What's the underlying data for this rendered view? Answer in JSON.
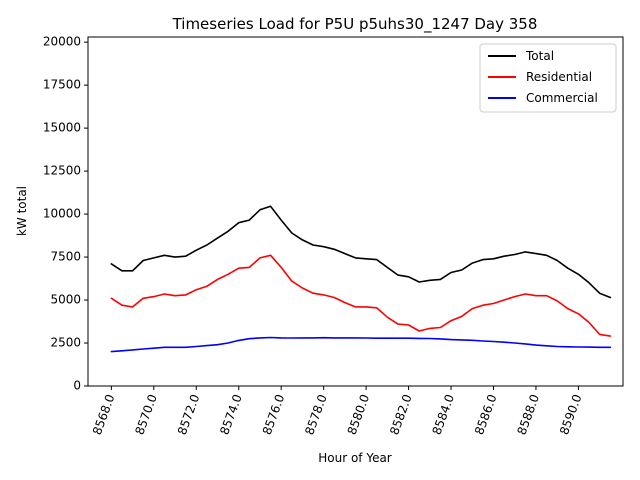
{
  "chart_data": {
    "type": "line",
    "title": "Timeseries Load for P5U p5uhs30_1247  Day 358",
    "xlabel": "Hour of Year",
    "ylabel": "kW total",
    "xlim": [
      8566.9,
      8592.1
    ],
    "ylim": [
      0,
      20300
    ],
    "x_ticks": [
      8568,
      8570,
      8572,
      8574,
      8576,
      8578,
      8580,
      8582,
      8584,
      8586,
      8588,
      8590
    ],
    "x_tick_labels": [
      "8568.0",
      "8570.0",
      "8572.0",
      "8574.0",
      "8576.0",
      "8578.0",
      "8580.0",
      "8582.0",
      "8584.0",
      "8586.0",
      "8588.0",
      "8590.0"
    ],
    "y_ticks": [
      0,
      2500,
      5000,
      7500,
      10000,
      12500,
      15000,
      17500,
      20000
    ],
    "y_tick_labels": [
      "0",
      "2500",
      "5000",
      "7500",
      "10000",
      "12500",
      "15000",
      "17500",
      "20000"
    ],
    "legend_position": "top-right",
    "x": [
      8568.0,
      8568.5,
      8569.0,
      8569.5,
      8570.0,
      8570.5,
      8571.0,
      8571.5,
      8572.0,
      8572.5,
      8573.0,
      8573.5,
      8574.0,
      8574.5,
      8575.0,
      8575.5,
      8576.0,
      8576.5,
      8577.0,
      8577.5,
      8578.0,
      8578.5,
      8579.0,
      8579.5,
      8580.0,
      8580.5,
      8581.0,
      8581.5,
      8582.0,
      8582.5,
      8583.0,
      8583.5,
      8584.0,
      8584.5,
      8585.0,
      8585.5,
      8586.0,
      8586.5,
      8587.0,
      8587.5,
      8588.0,
      8588.5,
      8589.0,
      8589.5,
      8590.0,
      8590.5,
      8591.0,
      8591.5
    ],
    "series": [
      {
        "name": "Total",
        "color": "#000000",
        "values": [
          7100,
          6700,
          6700,
          7300,
          7450,
          7600,
          7500,
          7550,
          7900,
          8200,
          8600,
          9000,
          9500,
          9650,
          10250,
          10450,
          9650,
          8900,
          8500,
          8200,
          8100,
          7950,
          7700,
          7450,
          7400,
          7350,
          6900,
          6450,
          6350,
          6050,
          6150,
          6200,
          6600,
          6750,
          7150,
          7350,
          7400,
          7550,
          7650,
          7800,
          7700,
          7600,
          7300,
          6850,
          6500,
          6000,
          5400,
          5150
        ]
      },
      {
        "name": "Residential",
        "color": "#ff0000",
        "values": [
          5100,
          4700,
          4600,
          5100,
          5200,
          5350,
          5250,
          5300,
          5600,
          5800,
          6200,
          6500,
          6850,
          6900,
          7450,
          7600,
          6900,
          6100,
          5700,
          5400,
          5300,
          5150,
          4850,
          4600,
          4600,
          4550,
          4000,
          3600,
          3550,
          3200,
          3350,
          3400,
          3800,
          4050,
          4500,
          4700,
          4800,
          5000,
          5200,
          5350,
          5250,
          5250,
          4950,
          4500,
          4200,
          3700,
          3000,
          2900
        ]
      },
      {
        "name": "Commercial",
        "color": "#0000ff",
        "values": [
          2000,
          2050,
          2100,
          2150,
          2200,
          2250,
          2250,
          2250,
          2300,
          2350,
          2400,
          2500,
          2650,
          2750,
          2800,
          2820,
          2800,
          2790,
          2800,
          2800,
          2810,
          2800,
          2800,
          2800,
          2790,
          2780,
          2780,
          2780,
          2780,
          2770,
          2760,
          2740,
          2700,
          2680,
          2660,
          2620,
          2590,
          2550,
          2500,
          2450,
          2380,
          2340,
          2300,
          2280,
          2270,
          2260,
          2250,
          2250
        ]
      }
    ]
  }
}
